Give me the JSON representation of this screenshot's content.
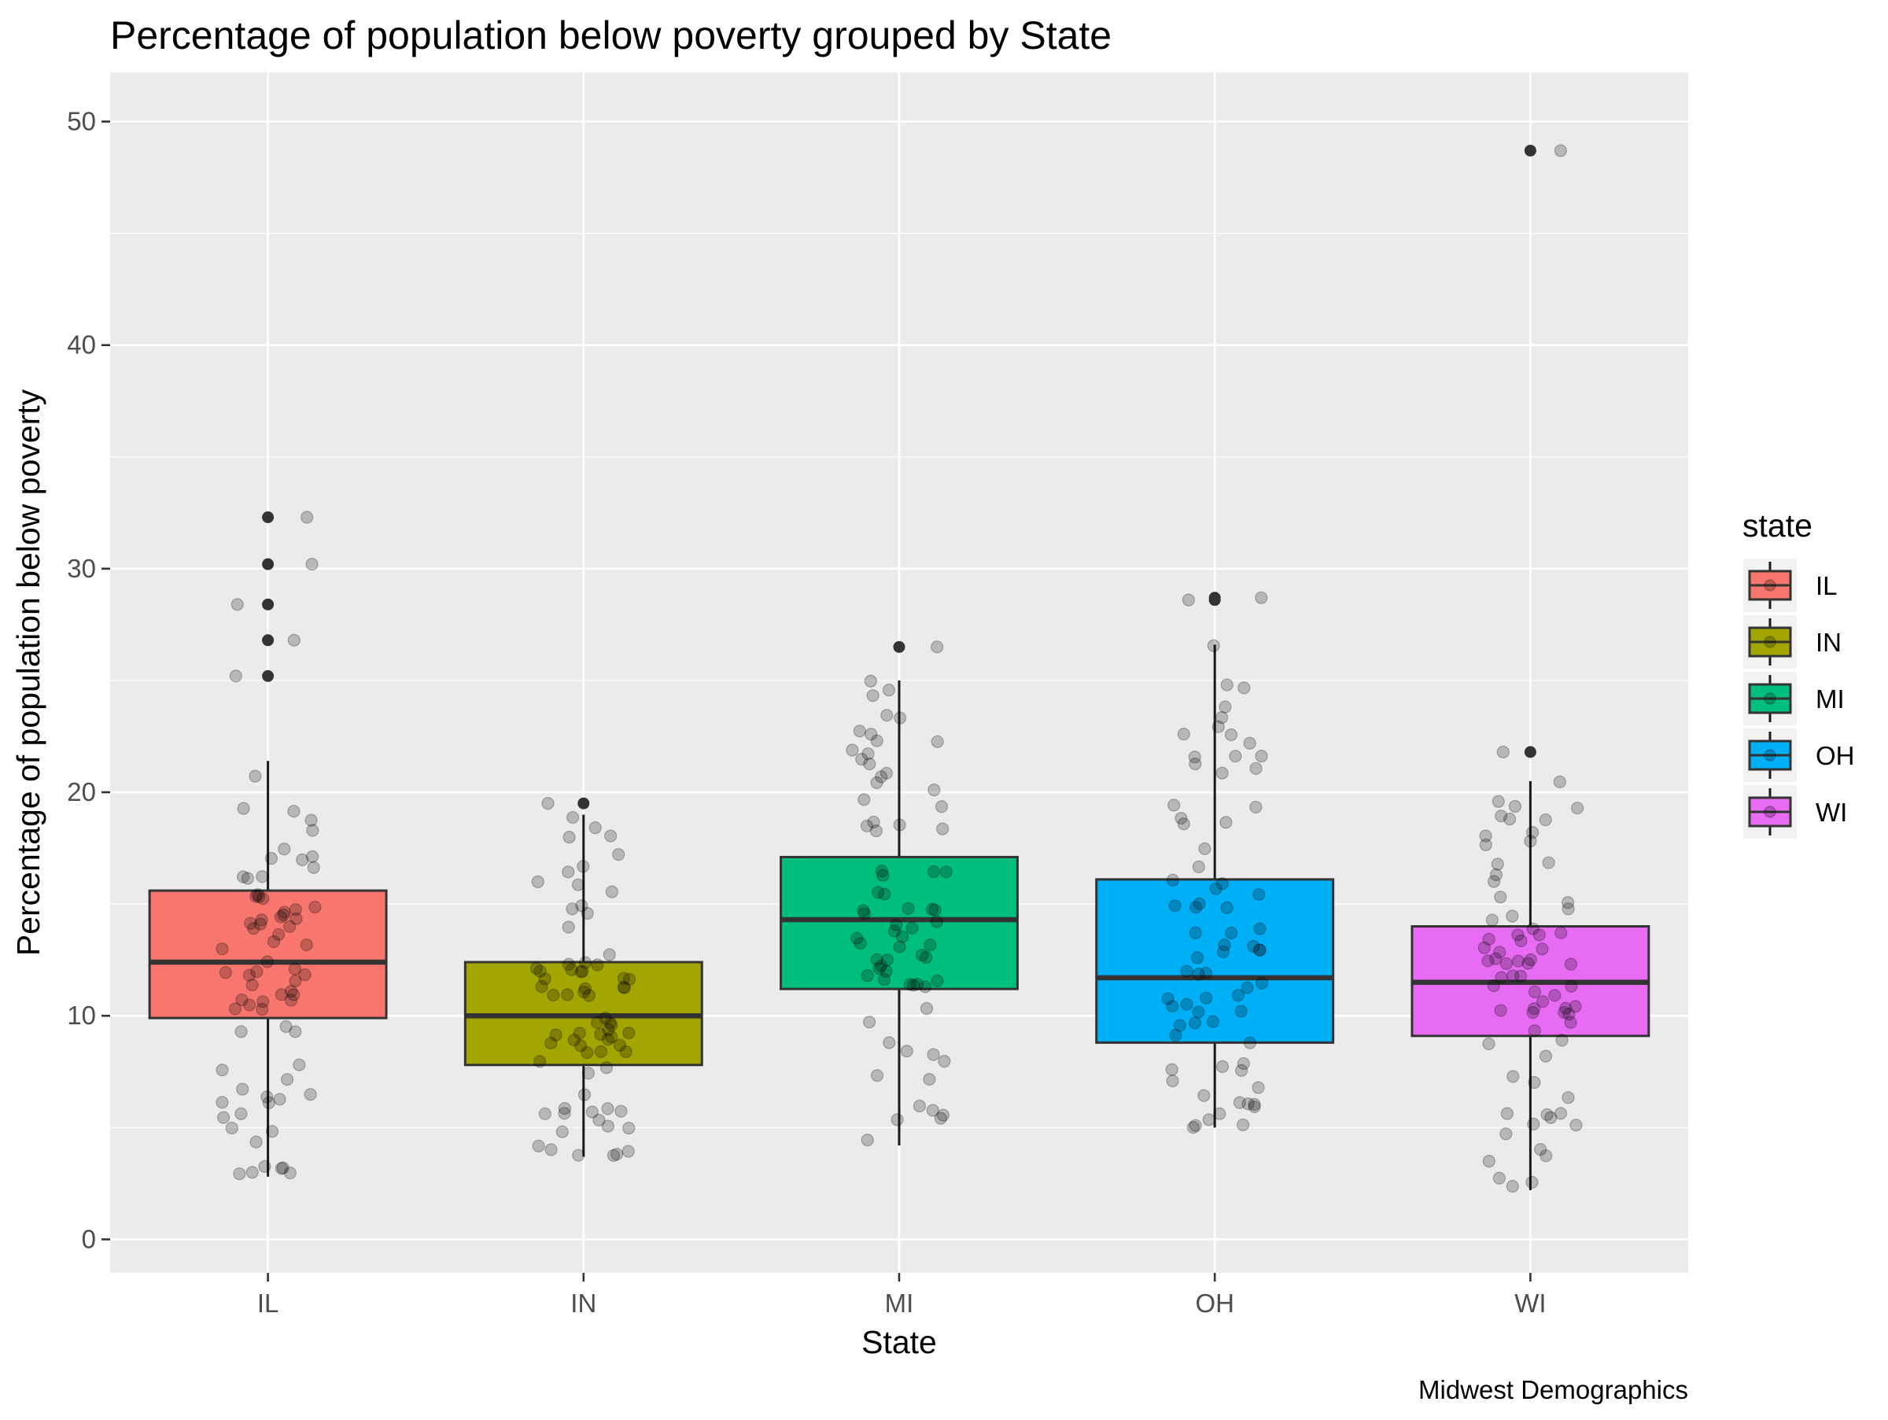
{
  "chart_data": {
    "type": "box",
    "title": "Percentage of population below poverty grouped by State",
    "xlabel": "State",
    "ylabel": "Percentage of population below poverty",
    "caption": "Midwest Demographics",
    "ylim": [
      -1.5,
      52.2
    ],
    "yticks": [
      0,
      10,
      20,
      30,
      40,
      50
    ],
    "grid": true,
    "jitter_points": true,
    "legend": {
      "title": "state",
      "position": "right"
    },
    "categories": [
      "IL",
      "IN",
      "MI",
      "OH",
      "WI"
    ],
    "colors": {
      "IL": "#F8766D",
      "IN": "#A3A500",
      "MI": "#00BF7D",
      "OH": "#00B0F6",
      "WI": "#E76BF3",
      "panel": "#EBEBEB",
      "grid": "#FFFFFF"
    },
    "boxes": [
      {
        "state": "IL",
        "min": 2.8,
        "q1": 9.9,
        "median": 12.4,
        "q3": 15.6,
        "max": 21.4,
        "outliers": [
          25.2,
          26.8,
          28.4,
          30.2,
          32.3
        ]
      },
      {
        "state": "IN",
        "min": 3.7,
        "q1": 7.8,
        "median": 10.0,
        "q3": 12.4,
        "max": 19.0,
        "outliers": [
          19.5
        ]
      },
      {
        "state": "MI",
        "min": 4.2,
        "q1": 11.2,
        "median": 14.3,
        "q3": 17.1,
        "max": 25.0,
        "outliers": [
          26.5
        ]
      },
      {
        "state": "OH",
        "min": 5.0,
        "q1": 8.8,
        "median": 11.7,
        "q3": 16.1,
        "max": 26.6,
        "outliers": [
          28.6,
          28.7
        ]
      },
      {
        "state": "WI",
        "min": 2.2,
        "q1": 9.1,
        "median": 11.5,
        "q3": 14.0,
        "max": 20.5,
        "outliers": [
          21.8,
          48.7
        ]
      }
    ]
  }
}
